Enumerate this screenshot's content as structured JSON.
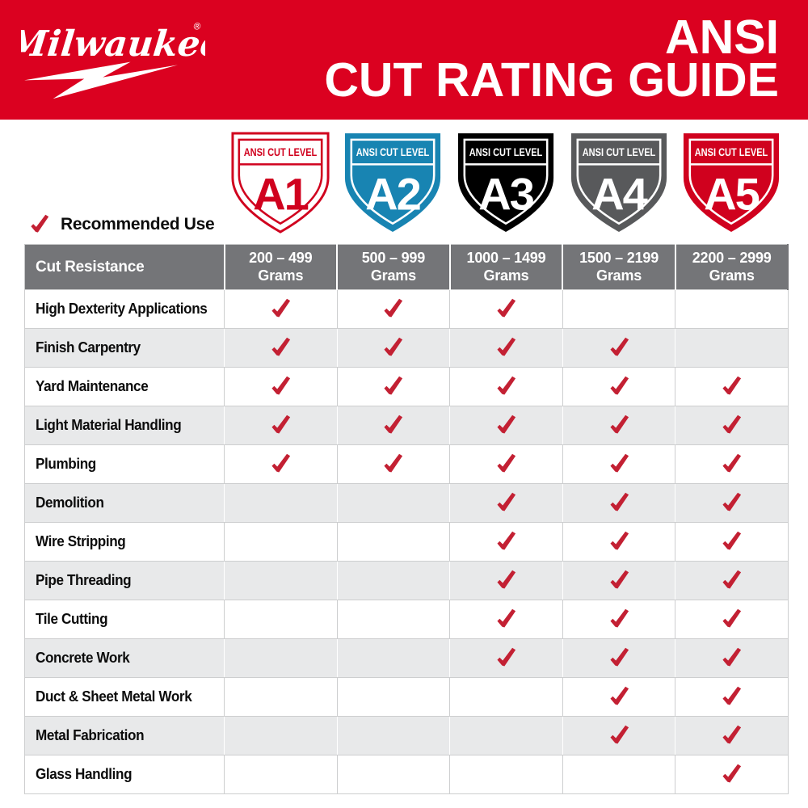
{
  "brand": {
    "logo_text": "Milwaukee",
    "registered_mark": "®"
  },
  "header": {
    "line1": "ANSI",
    "line2": "CUT RATING GUIDE",
    "bg_color": "#DB0120",
    "text_color": "#FFFFFF"
  },
  "shields": [
    {
      "label": "ANSI CUT LEVEL",
      "level": "A1",
      "bg": "#FFFFFF",
      "fg": "#D0011E",
      "outline": "#D0011E"
    },
    {
      "label": "ANSI CUT LEVEL",
      "level": "A2",
      "bg": "#1884B2",
      "fg": "#FFFFFF",
      "outline": "none"
    },
    {
      "label": "ANSI CUT LEVEL",
      "level": "A3",
      "bg": "#000000",
      "fg": "#FFFFFF",
      "outline": "none"
    },
    {
      "label": "ANSI CUT LEVEL",
      "level": "A4",
      "bg": "#58595B",
      "fg": "#FFFFFF",
      "outline": "none"
    },
    {
      "label": "ANSI CUT LEVEL",
      "level": "A5",
      "bg": "#D0011E",
      "fg": "#FFFFFF",
      "outline": "none"
    }
  ],
  "legend": {
    "label": "Recommended Use",
    "check_color": "#C32033"
  },
  "table": {
    "corner_header": "Cut Resistance",
    "columns": [
      {
        "range": "200 – 499",
        "unit": "Grams"
      },
      {
        "range": "500 – 999",
        "unit": "Grams"
      },
      {
        "range": "1000 – 1499",
        "unit": "Grams"
      },
      {
        "range": "1500 – 2199",
        "unit": "Grams"
      },
      {
        "range": "2200 – 2999",
        "unit": "Grams"
      }
    ],
    "rows": [
      {
        "label": "High Dexterity Applications",
        "checks": [
          true,
          true,
          true,
          false,
          false
        ]
      },
      {
        "label": "Finish Carpentry",
        "checks": [
          true,
          true,
          true,
          true,
          false
        ]
      },
      {
        "label": "Yard Maintenance",
        "checks": [
          true,
          true,
          true,
          true,
          true
        ]
      },
      {
        "label": "Light Material Handling",
        "checks": [
          true,
          true,
          true,
          true,
          true
        ]
      },
      {
        "label": "Plumbing",
        "checks": [
          true,
          true,
          true,
          true,
          true
        ]
      },
      {
        "label": "Demolition",
        "checks": [
          false,
          false,
          true,
          true,
          true
        ]
      },
      {
        "label": "Wire Stripping",
        "checks": [
          false,
          false,
          true,
          true,
          true
        ]
      },
      {
        "label": "Pipe Threading",
        "checks": [
          false,
          false,
          true,
          true,
          true
        ]
      },
      {
        "label": "Tile Cutting",
        "checks": [
          false,
          false,
          true,
          true,
          true
        ]
      },
      {
        "label": "Concrete Work",
        "checks": [
          false,
          false,
          true,
          true,
          true
        ]
      },
      {
        "label": "Duct & Sheet Metal Work",
        "checks": [
          false,
          false,
          false,
          true,
          true
        ]
      },
      {
        "label": "Metal Fabrication",
        "checks": [
          false,
          false,
          false,
          true,
          true
        ]
      },
      {
        "label": "Glass Handling",
        "checks": [
          false,
          false,
          false,
          false,
          true
        ]
      }
    ]
  }
}
